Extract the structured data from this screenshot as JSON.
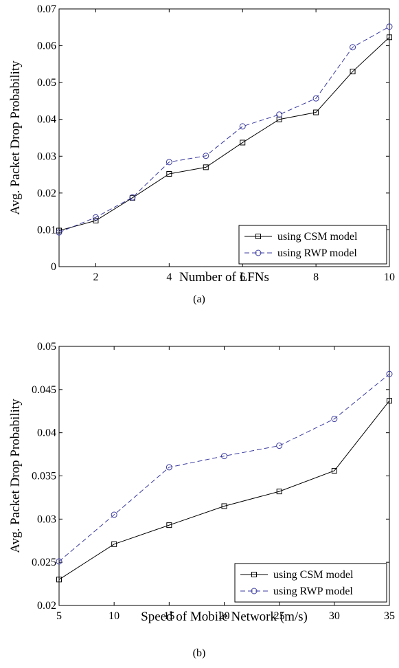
{
  "chart_data": [
    {
      "type": "line",
      "caption": "(a)",
      "xlabel": "Number of LFNs",
      "ylabel": "Avg. Packet Drop Probability",
      "xlim": [
        1,
        10
      ],
      "ylim": [
        0,
        0.07
      ],
      "xticks": [
        2,
        4,
        6,
        8,
        10
      ],
      "xtick_labels": [
        "2",
        "4",
        "6",
        "8",
        "10"
      ],
      "yticks": [
        0,
        0.01,
        0.02,
        0.03,
        0.04,
        0.05,
        0.06,
        0.07
      ],
      "ytick_labels": [
        "0",
        "0.01",
        "0.02",
        "0.03",
        "0.04",
        "0.05",
        "0.06",
        "0.07"
      ],
      "grid": false,
      "legend_position": "bottom-right",
      "x": [
        1,
        2,
        3,
        4,
        5,
        6,
        7,
        8,
        9,
        10
      ],
      "series": [
        {
          "name": "using CSM model",
          "color": "#000000",
          "line_style": "solid",
          "marker": "square",
          "values": [
            0.0098,
            0.0125,
            0.0187,
            0.0252,
            0.027,
            0.0337,
            0.04,
            0.0419,
            0.053,
            0.0623
          ]
        },
        {
          "name": "using RWP model",
          "color": "#3a3aa0",
          "line_style": "dashed",
          "marker": "circle",
          "values": [
            0.0093,
            0.0134,
            0.0188,
            0.0284,
            0.0301,
            0.0381,
            0.0413,
            0.0457,
            0.0596,
            0.0652
          ]
        }
      ]
    },
    {
      "type": "line",
      "caption": "(b)",
      "xlabel": "Speed of Mobile Network (m/s)",
      "ylabel": "Avg. Packet Drop Probability",
      "xlim": [
        5,
        35
      ],
      "ylim": [
        0.02,
        0.05
      ],
      "xticks": [
        5,
        10,
        15,
        20,
        25,
        30,
        35
      ],
      "xtick_labels": [
        "5",
        "10",
        "15",
        "20",
        "25",
        "30",
        "35"
      ],
      "yticks": [
        0.02,
        0.025,
        0.03,
        0.035,
        0.04,
        0.045,
        0.05
      ],
      "ytick_labels": [
        "0.02",
        "0.025",
        "0.03",
        "0.035",
        "0.04",
        "0.045",
        "0.05"
      ],
      "grid": false,
      "legend_position": "bottom-right",
      "x": [
        5,
        10,
        15,
        20,
        25,
        30,
        35
      ],
      "series": [
        {
          "name": "using CSM model",
          "color": "#000000",
          "line_style": "solid",
          "marker": "square",
          "values": [
            0.023,
            0.0271,
            0.0293,
            0.0315,
            0.0332,
            0.0356,
            0.0437
          ]
        },
        {
          "name": "using RWP model",
          "color": "#3a3aa0",
          "line_style": "dashed",
          "marker": "circle",
          "values": [
            0.0251,
            0.0305,
            0.036,
            0.0373,
            0.0385,
            0.0416,
            0.0468
          ]
        }
      ]
    }
  ]
}
